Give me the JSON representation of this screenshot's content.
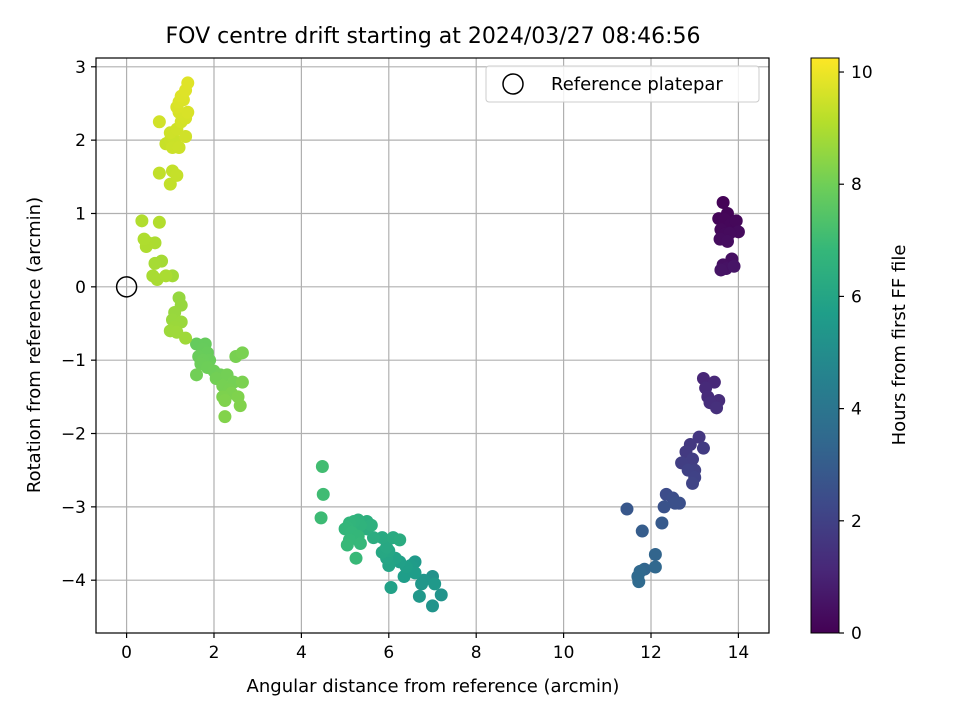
{
  "chart_data": {
    "type": "scatter",
    "title": "FOV centre drift starting at 2024/03/27 08:46:56",
    "xlabel": "Angular distance from reference (arcmin)",
    "ylabel": "Rotation from reference (arcmin)",
    "xlim": [
      -0.7,
      14.7
    ],
    "ylim": [
      -4.72,
      3.12
    ],
    "xticks": [
      0,
      2,
      4,
      6,
      8,
      10,
      12,
      14
    ],
    "yticks": [
      -4,
      -3,
      -2,
      -1,
      0,
      1,
      2,
      3
    ],
    "grid": true,
    "legend": {
      "position": "top-right",
      "entries": [
        {
          "label": "Reference platepar",
          "marker": "open-circle"
        }
      ]
    },
    "reference_point": {
      "x": 0,
      "y": 0
    },
    "colorbar": {
      "label": "Hours from first FF file",
      "min": 0,
      "max": 10.25,
      "ticks": [
        0,
        2,
        4,
        6,
        8,
        10
      ],
      "colormap": "viridis"
    },
    "colormap_stops": [
      "#440154",
      "#482878",
      "#3e4989",
      "#31688e",
      "#26828e",
      "#1f9e89",
      "#35b779",
      "#6ece58",
      "#b5de2b",
      "#fde725"
    ],
    "points": [
      [
        13.65,
        1.15,
        0.05
      ],
      [
        13.75,
        1.0,
        0.1
      ],
      [
        13.55,
        0.93,
        0.12
      ],
      [
        13.68,
        0.92,
        0.15
      ],
      [
        13.82,
        0.85,
        0.18
      ],
      [
        13.95,
        0.9,
        0.2
      ],
      [
        13.6,
        0.78,
        0.22
      ],
      [
        13.7,
        0.72,
        0.25
      ],
      [
        14.0,
        0.75,
        0.28
      ],
      [
        13.8,
        0.73,
        0.3
      ],
      [
        13.58,
        0.65,
        0.32
      ],
      [
        13.75,
        0.62,
        0.35
      ],
      [
        13.85,
        0.38,
        0.4
      ],
      [
        13.65,
        0.3,
        0.45
      ],
      [
        13.72,
        0.25,
        0.5
      ],
      [
        13.6,
        0.23,
        0.55
      ],
      [
        13.9,
        0.28,
        0.58
      ],
      [
        13.2,
        -1.25,
        1.1
      ],
      [
        13.45,
        -1.3,
        1.15
      ],
      [
        13.25,
        -1.38,
        1.2
      ],
      [
        13.3,
        -1.5,
        1.25
      ],
      [
        13.55,
        -1.55,
        1.3
      ],
      [
        13.35,
        -1.58,
        1.35
      ],
      [
        13.5,
        -1.65,
        1.4
      ],
      [
        13.1,
        -2.05,
        1.65
      ],
      [
        12.9,
        -2.15,
        1.7
      ],
      [
        12.8,
        -2.25,
        1.75
      ],
      [
        13.2,
        -2.2,
        1.8
      ],
      [
        12.95,
        -2.35,
        1.85
      ],
      [
        12.7,
        -2.4,
        1.9
      ],
      [
        13.0,
        -2.5,
        1.95
      ],
      [
        12.85,
        -2.5,
        2.0
      ],
      [
        13.0,
        -2.6,
        2.05
      ],
      [
        12.95,
        -2.68,
        2.1
      ],
      [
        12.35,
        -2.83,
        2.4
      ],
      [
        12.5,
        -2.88,
        2.45
      ],
      [
        12.65,
        -2.95,
        2.5
      ],
      [
        12.55,
        -2.95,
        2.55
      ],
      [
        12.3,
        -3.0,
        2.6
      ],
      [
        11.45,
        -3.03,
        2.8
      ],
      [
        12.25,
        -3.22,
        2.9
      ],
      [
        11.8,
        -3.33,
        3.0
      ],
      [
        12.1,
        -3.65,
        3.3
      ],
      [
        11.85,
        -3.85,
        3.35
      ],
      [
        12.1,
        -3.82,
        3.4
      ],
      [
        11.75,
        -3.88,
        3.45
      ],
      [
        11.7,
        -3.95,
        3.5
      ],
      [
        11.72,
        -4.02,
        3.55
      ],
      [
        7.0,
        -3.95,
        5.2
      ],
      [
        7.2,
        -4.2,
        5.25
      ],
      [
        7.0,
        -4.35,
        5.3
      ],
      [
        6.8,
        -4.0,
        5.35
      ],
      [
        6.75,
        -4.05,
        5.4
      ],
      [
        6.7,
        -4.22,
        5.45
      ],
      [
        7.05,
        -4.05,
        5.5
      ],
      [
        6.6,
        -3.75,
        5.55
      ],
      [
        6.5,
        -3.8,
        5.6
      ],
      [
        6.6,
        -3.9,
        5.65
      ],
      [
        6.35,
        -3.95,
        5.7
      ],
      [
        6.4,
        -3.82,
        5.75
      ],
      [
        6.25,
        -3.75,
        5.8
      ],
      [
        6.05,
        -4.1,
        5.85
      ],
      [
        6.15,
        -3.7,
        5.9
      ],
      [
        6.0,
        -3.8,
        5.95
      ],
      [
        5.95,
        -3.7,
        6.0
      ],
      [
        6.0,
        -3.6,
        6.05
      ],
      [
        5.85,
        -3.62,
        6.1
      ],
      [
        5.95,
        -3.55,
        6.15
      ],
      [
        5.85,
        -3.42,
        6.2
      ],
      [
        6.1,
        -3.42,
        6.25
      ],
      [
        6.25,
        -3.45,
        6.3
      ],
      [
        5.65,
        -3.42,
        6.35
      ],
      [
        5.5,
        -3.3,
        6.4
      ],
      [
        5.5,
        -3.2,
        6.45
      ],
      [
        5.6,
        -3.25,
        6.5
      ],
      [
        5.3,
        -3.18,
        6.55
      ],
      [
        5.35,
        -3.25,
        6.6
      ],
      [
        5.2,
        -3.2,
        6.65
      ],
      [
        5.1,
        -3.22,
        6.7
      ],
      [
        5.05,
        -3.28,
        6.72
      ],
      [
        5.0,
        -3.3,
        6.75
      ],
      [
        5.15,
        -3.35,
        6.78
      ],
      [
        5.3,
        -3.4,
        6.8
      ],
      [
        5.1,
        -3.45,
        6.82
      ],
      [
        5.35,
        -3.5,
        6.85
      ],
      [
        5.05,
        -3.52,
        6.88
      ],
      [
        5.25,
        -3.7,
        6.9
      ],
      [
        4.45,
        -3.15,
        7.0
      ],
      [
        4.5,
        -2.83,
        7.05
      ],
      [
        4.48,
        -2.45,
        7.1
      ],
      [
        1.6,
        -0.78,
        7.8
      ],
      [
        1.8,
        -0.78,
        7.82
      ],
      [
        1.75,
        -0.85,
        7.84
      ],
      [
        1.85,
        -0.9,
        7.86
      ],
      [
        1.65,
        -0.95,
        7.88
      ],
      [
        1.9,
        -1.0,
        7.9
      ],
      [
        1.75,
        -1.0,
        7.92
      ],
      [
        1.7,
        -1.05,
        7.94
      ],
      [
        1.85,
        -1.1,
        7.96
      ],
      [
        2.0,
        -1.15,
        7.98
      ],
      [
        2.15,
        -1.2,
        8.0
      ],
      [
        1.6,
        -1.2,
        8.02
      ],
      [
        2.05,
        -1.25,
        8.04
      ],
      [
        2.3,
        -1.2,
        8.06
      ],
      [
        2.45,
        -1.3,
        8.08
      ],
      [
        2.2,
        -1.35,
        8.1
      ],
      [
        2.35,
        -1.4,
        8.12
      ],
      [
        2.5,
        -0.95,
        8.14
      ],
      [
        2.65,
        -0.9,
        8.16
      ],
      [
        2.65,
        -1.3,
        8.18
      ],
      [
        2.4,
        -1.45,
        8.2
      ],
      [
        2.2,
        -1.5,
        8.22
      ],
      [
        2.55,
        -1.5,
        8.24
      ],
      [
        2.25,
        -1.55,
        8.26
      ],
      [
        2.6,
        -1.62,
        8.28
      ],
      [
        2.25,
        -1.77,
        8.3
      ],
      [
        1.2,
        -0.15,
        8.6
      ],
      [
        1.25,
        -0.25,
        8.62
      ],
      [
        1.1,
        -0.35,
        8.64
      ],
      [
        1.05,
        -0.45,
        8.66
      ],
      [
        1.25,
        -0.48,
        8.68
      ],
      [
        1.1,
        -0.55,
        8.7
      ],
      [
        1.0,
        -0.6,
        8.72
      ],
      [
        1.15,
        -0.62,
        8.74
      ],
      [
        1.35,
        -0.7,
        8.76
      ],
      [
        1.05,
        0.15,
        8.8
      ],
      [
        0.8,
        0.35,
        8.85
      ],
      [
        0.65,
        0.32,
        8.87
      ],
      [
        0.6,
        0.15,
        8.9
      ],
      [
        0.7,
        0.1,
        8.92
      ],
      [
        0.9,
        0.15,
        8.94
      ],
      [
        0.65,
        0.6,
        8.96
      ],
      [
        0.5,
        0.6,
        8.98
      ],
      [
        0.45,
        0.55,
        9.0
      ],
      [
        0.4,
        0.65,
        9.02
      ],
      [
        0.35,
        0.9,
        9.04
      ],
      [
        0.75,
        0.88,
        9.06
      ],
      [
        0.75,
        1.55,
        9.3
      ],
      [
        1.0,
        1.4,
        9.32
      ],
      [
        1.05,
        1.58,
        9.34
      ],
      [
        1.15,
        1.52,
        9.36
      ],
      [
        0.9,
        1.95,
        9.4
      ],
      [
        1.0,
        2.0,
        9.42
      ],
      [
        1.1,
        2.0,
        9.44
      ],
      [
        1.05,
        1.9,
        9.46
      ],
      [
        1.2,
        1.9,
        9.48
      ],
      [
        1.0,
        2.1,
        9.5
      ],
      [
        1.15,
        2.15,
        9.52
      ],
      [
        1.35,
        2.05,
        9.54
      ],
      [
        0.75,
        2.25,
        9.56
      ],
      [
        1.25,
        2.25,
        9.58
      ],
      [
        1.3,
        2.35,
        9.6
      ],
      [
        1.35,
        2.3,
        9.62
      ],
      [
        1.2,
        2.38,
        9.64
      ],
      [
        1.4,
        2.38,
        9.66
      ],
      [
        1.15,
        2.45,
        9.68
      ],
      [
        1.2,
        2.52,
        9.7
      ],
      [
        1.3,
        2.55,
        9.72
      ],
      [
        1.25,
        2.6,
        9.74
      ],
      [
        1.35,
        2.68,
        9.76
      ],
      [
        1.4,
        2.78,
        9.78
      ]
    ]
  }
}
